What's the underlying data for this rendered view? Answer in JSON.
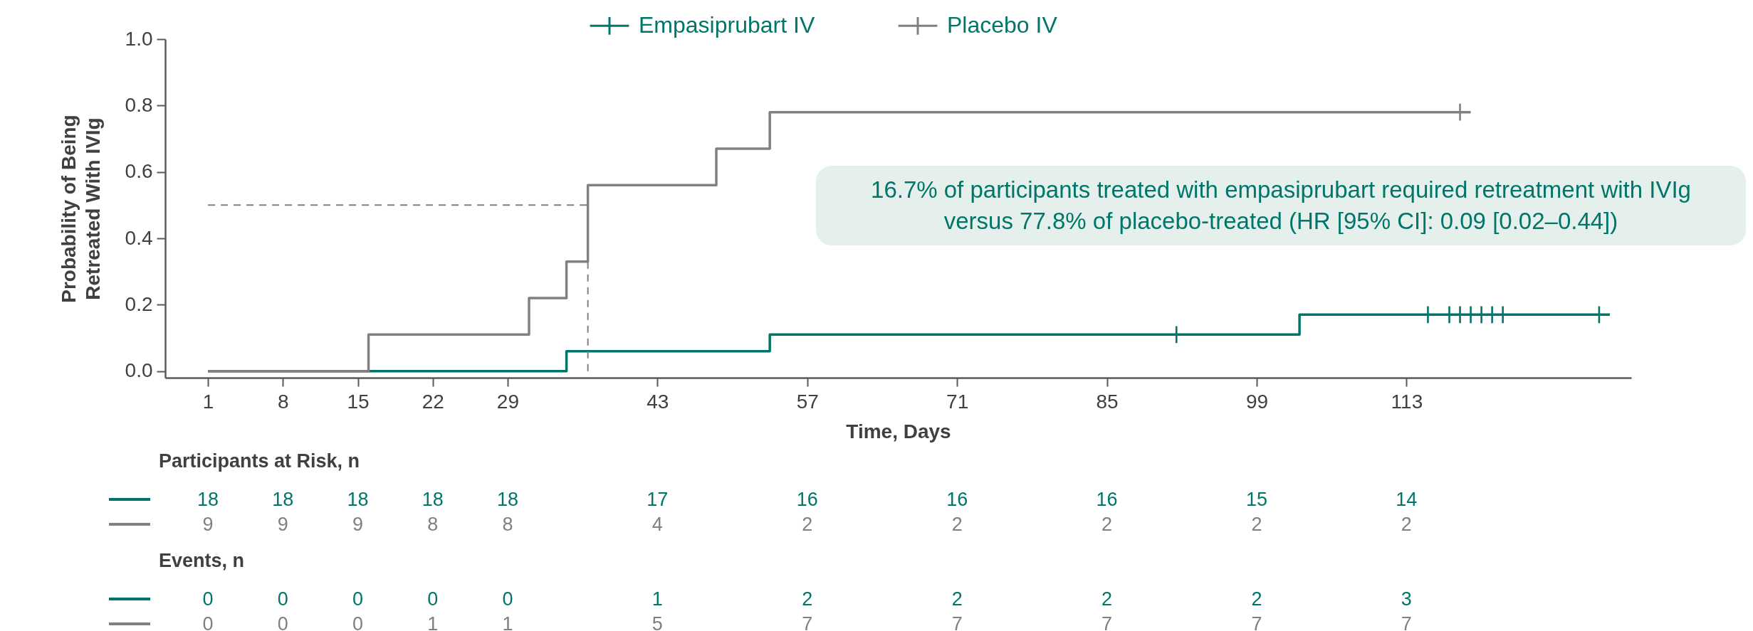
{
  "chart_data": {
    "type": "step",
    "xlabel": "Time, Days",
    "ylabel": "Probability of Being\nRetreated With IVIg",
    "xlim": [
      -3,
      134
    ],
    "ylim": [
      -0.02,
      1.0
    ],
    "xticks": [
      1,
      8,
      15,
      22,
      29,
      43,
      57,
      71,
      85,
      99,
      113
    ],
    "yticks": [
      {
        "value": 0,
        "label": "0.0"
      },
      {
        "value": 0.2,
        "label": "0.2"
      },
      {
        "value": 0.4,
        "label": "0.4"
      },
      {
        "value": 0.6,
        "label": "0.6"
      },
      {
        "value": 0.8,
        "label": "0.8"
      },
      {
        "value": 1.0,
        "label": "1.0"
      }
    ],
    "grid": false,
    "legend": "top",
    "series": [
      {
        "name": "Empasiprubart IV",
        "type": "step",
        "color": "#00766a",
        "x": [
          1,
          34.5,
          53.5,
          103,
          132
        ],
        "values": [
          0,
          0.06,
          0.11,
          0.17,
          0.17
        ]
      },
      {
        "name": "Placebo IV",
        "type": "step",
        "color": "#808080",
        "x": [
          1,
          16,
          31,
          34.5,
          36.5,
          48.5,
          53.5,
          119
        ],
        "values": [
          0,
          0.11,
          0.22,
          0.33,
          0.56,
          0.67,
          0.78,
          0.78
        ]
      },
      {
        "type": "scatter",
        "marker": "cross",
        "color": "#00766a",
        "x": [
          91.5,
          115,
          117,
          118,
          119,
          120,
          121,
          122,
          131
        ],
        "values": [
          0.11,
          0.17,
          0.17,
          0.17,
          0.17,
          0.17,
          0.17,
          0.17,
          0.17
        ]
      },
      {
        "type": "scatter",
        "marker": "cross",
        "color": "#808080",
        "x": [
          118
        ],
        "values": [
          0.78
        ]
      }
    ],
    "ref_lines": [
      {
        "axis": "y",
        "value": 0.5,
        "color": "#808080",
        "line_style": "dashed"
      },
      {
        "axis": "x",
        "value": 36.5,
        "color": "#808080",
        "line_style": "dashed"
      }
    ],
    "annotations": [
      "16.7% of participants treated with empasiprubart required retreatment with IVIg versus 77.8% of placebo-treated (HR [95% CI]: 0.09 [0.02–0.44])",
      "Participants at Risk, n",
      "18 18 18 18 18 17 16 16 16 15 14",
      "9 9 9 8 8 4 2 2 2 2 2",
      "Events, n",
      "0 0 0 0 0 1 2 2 2 2 3",
      "0 0 0 1 1 5 7 7 7 7 7"
    ]
  }
}
